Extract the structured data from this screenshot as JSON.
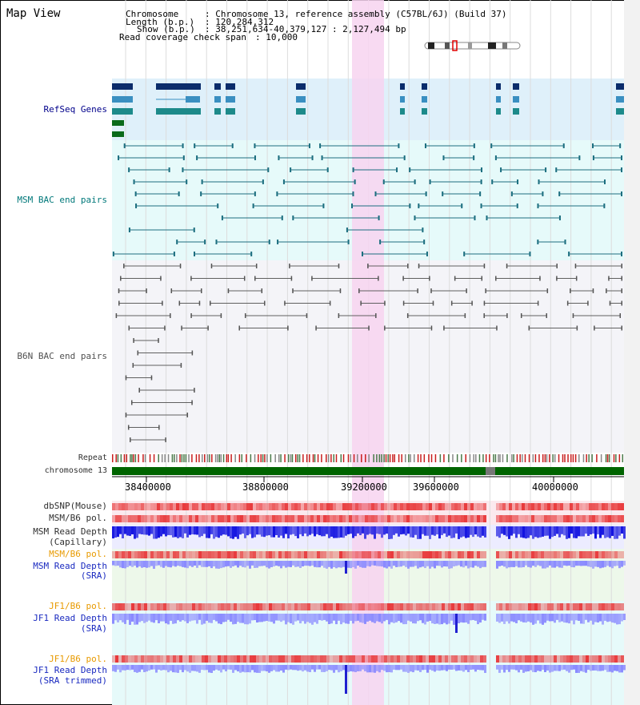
{
  "page_title": "Map View",
  "header": {
    "chromosome_key": "Chromosome",
    "chromosome_val": ": Chromosome 13, reference assembly (C57BL/6J) (Build 37)",
    "length_key": "Length (b.p.)",
    "length_val": ": 120,284,312",
    "show_key": "Show (b.p.)",
    "show_val": ": 38,251,634-40,379,127 : 2,127,494 bp",
    "coverage_key": "Read coverage check span",
    "coverage_val": ": 10,000"
  },
  "tracks": {
    "refseq": "RefSeq Genes",
    "msm_bac": "MSM BAC end pairs",
    "b6n_bac": "B6N BAC end pairs",
    "repeat": "Repeat",
    "chromosome": "chromosome 13",
    "dbsnp": "dbSNP(Mouse)",
    "msm_b6_pol_1": "MSM/B6 pol.",
    "msm_read_depth_cap_1": "MSM Read Depth",
    "msm_read_depth_cap_2": "(Capillary)",
    "msm_b6_pol_2": "MSM/B6 pol.",
    "msm_read_depth_sra_1": "MSM Read Depth",
    "msm_read_depth_sra_2": "(SRA)",
    "jf1_b6_pol_1": "JF1/B6 pol.",
    "jf1_read_depth_sra_1": "JF1 Read Depth",
    "jf1_read_depth_sra_2": "(SRA)",
    "jf1_b6_pol_2": "JF1/B6 pol.",
    "jf1_read_depth_trim_1": "JF1 Read Depth",
    "jf1_read_depth_trim_2": "(SRA trimmed)"
  },
  "axis_ticks": [
    "38400000",
    "38800000",
    "39200000",
    "39600000",
    "40000000"
  ],
  "colors": {
    "highlight": "#f7d4f0",
    "refseq_bg": "#dff0fa",
    "msm_bg": "#e6fafa",
    "b6n_bg": "#f4f4f8",
    "chromosome_bar": "#006400",
    "snp_red": "#e8383a",
    "depth_blue": "#1010e0",
    "depth_light": "#8888ff"
  }
}
